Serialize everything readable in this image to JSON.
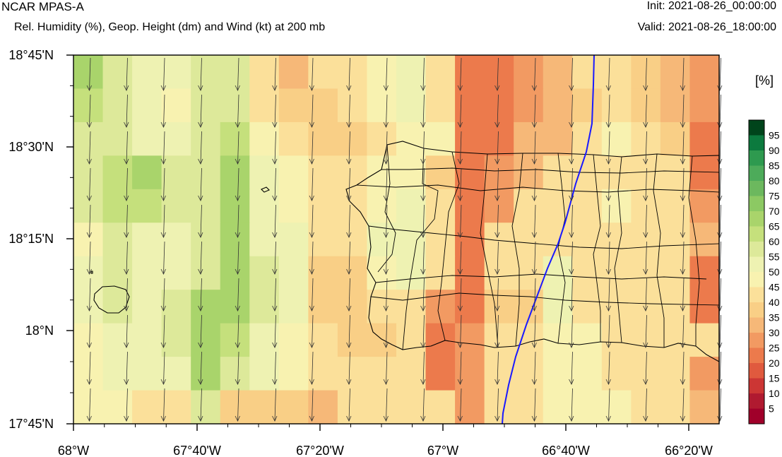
{
  "header": {
    "title": "NCAR MPAS-A",
    "subtitle": "Rel. Humidity (%), Geop. Height (dm) and Wind (kt) at 200 mb",
    "init": "Init: 2021-08-26_00:00:00",
    "valid": "Valid: 2021-08-26_18:00:00"
  },
  "map": {
    "lat_labels": [
      "18°45'N",
      "18°30'N",
      "18°15'N",
      "18°N",
      "17°45'N"
    ],
    "lon_labels": [
      "68°W",
      "67°40'W",
      "67°20'W",
      "67°W",
      "66°40'W",
      "66°20'W"
    ],
    "lat_range": [
      17.75,
      18.75
    ],
    "lon_range": [
      -68.0,
      -66.25
    ],
    "rh_columns_note": "coarse model cells shaded by RH class; wind barbs nearly northerly",
    "height_contour_color": "#1a1aff",
    "boundary_color": "#000000"
  },
  "colorbar": {
    "unit": "[%]",
    "labels": [
      "95",
      "90",
      "85",
      "80",
      "75",
      "70",
      "65",
      "60",
      "55",
      "50",
      "45",
      "40",
      "35",
      "30",
      "25",
      "20",
      "15",
      "10",
      "5"
    ],
    "colors": [
      "#00441b",
      "#0c7a3e",
      "#2e9a4f",
      "#4dab5a",
      "#6cb85e",
      "#8cc963",
      "#a9d46b",
      "#c5e07c",
      "#dde99a",
      "#eef2b2",
      "#f8f2b0",
      "#fbe09a",
      "#f9cf86",
      "#f6b878",
      "#f29a62",
      "#ec7a4c",
      "#e05a3e",
      "#cc3634",
      "#b01a30",
      "#a0002a"
    ]
  },
  "chart_data": {
    "type": "heatmap",
    "title": "NCAR MPAS-A",
    "subtitle": "Rel. Humidity (%), Geop. Height (dm) and Wind (kt) at 200 mb",
    "x_ticks": [
      "68°W",
      "67°40'W",
      "67°20'W",
      "67°W",
      "66°40'W",
      "66°20'W"
    ],
    "y_ticks": [
      "18°45'N",
      "18°30'N",
      "18°15'N",
      "18°N",
      "17°45'N"
    ],
    "colorbar_ticks": [
      5,
      10,
      15,
      20,
      25,
      30,
      35,
      40,
      45,
      50,
      55,
      60,
      65,
      70,
      75,
      80,
      85,
      90,
      95
    ],
    "colorbar_unit": "[%]",
    "rh_grid_rows": [
      [
        70,
        60,
        55,
        55,
        60,
        60,
        45,
        35,
        45,
        45,
        50,
        55,
        45,
        25,
        25,
        30,
        35,
        45,
        45,
        40,
        35,
        30
      ],
      [
        65,
        60,
        55,
        50,
        60,
        60,
        45,
        40,
        40,
        45,
        50,
        55,
        45,
        25,
        25,
        30,
        35,
        40,
        45,
        40,
        35,
        30
      ],
      [
        60,
        60,
        55,
        55,
        60,
        65,
        50,
        45,
        40,
        40,
        45,
        50,
        50,
        25,
        25,
        35,
        35,
        45,
        50,
        45,
        40,
        25
      ],
      [
        60,
        65,
        70,
        60,
        60,
        70,
        55,
        50,
        45,
        45,
        50,
        50,
        40,
        25,
        30,
        35,
        45,
        45,
        45,
        45,
        45,
        25
      ],
      [
        60,
        65,
        65,
        60,
        60,
        70,
        55,
        50,
        45,
        45,
        50,
        55,
        45,
        25,
        30,
        45,
        45,
        45,
        50,
        45,
        45,
        30
      ],
      [
        50,
        60,
        55,
        55,
        60,
        70,
        55,
        55,
        45,
        45,
        55,
        55,
        45,
        25,
        45,
        45,
        45,
        45,
        45,
        45,
        45,
        35
      ],
      [
        55,
        60,
        55,
        55,
        60,
        70,
        60,
        55,
        40,
        40,
        50,
        55,
        45,
        25,
        45,
        45,
        55,
        45,
        45,
        45,
        45,
        25
      ],
      [
        55,
        60,
        55,
        60,
        70,
        70,
        60,
        55,
        40,
        40,
        45,
        45,
        30,
        25,
        40,
        40,
        55,
        45,
        45,
        45,
        45,
        25
      ],
      [
        50,
        55,
        55,
        60,
        70,
        65,
        55,
        50,
        45,
        40,
        40,
        45,
        25,
        30,
        45,
        45,
        50,
        50,
        45,
        45,
        45,
        45
      ],
      [
        50,
        55,
        55,
        55,
        70,
        60,
        55,
        50,
        45,
        45,
        45,
        45,
        25,
        30,
        45,
        45,
        50,
        50,
        45,
        45,
        45,
        30
      ],
      [
        50,
        50,
        45,
        45,
        60,
        40,
        40,
        40,
        35,
        45,
        45,
        45,
        45,
        30,
        45,
        45,
        50,
        50,
        50,
        45,
        45,
        35
      ]
    ]
  }
}
